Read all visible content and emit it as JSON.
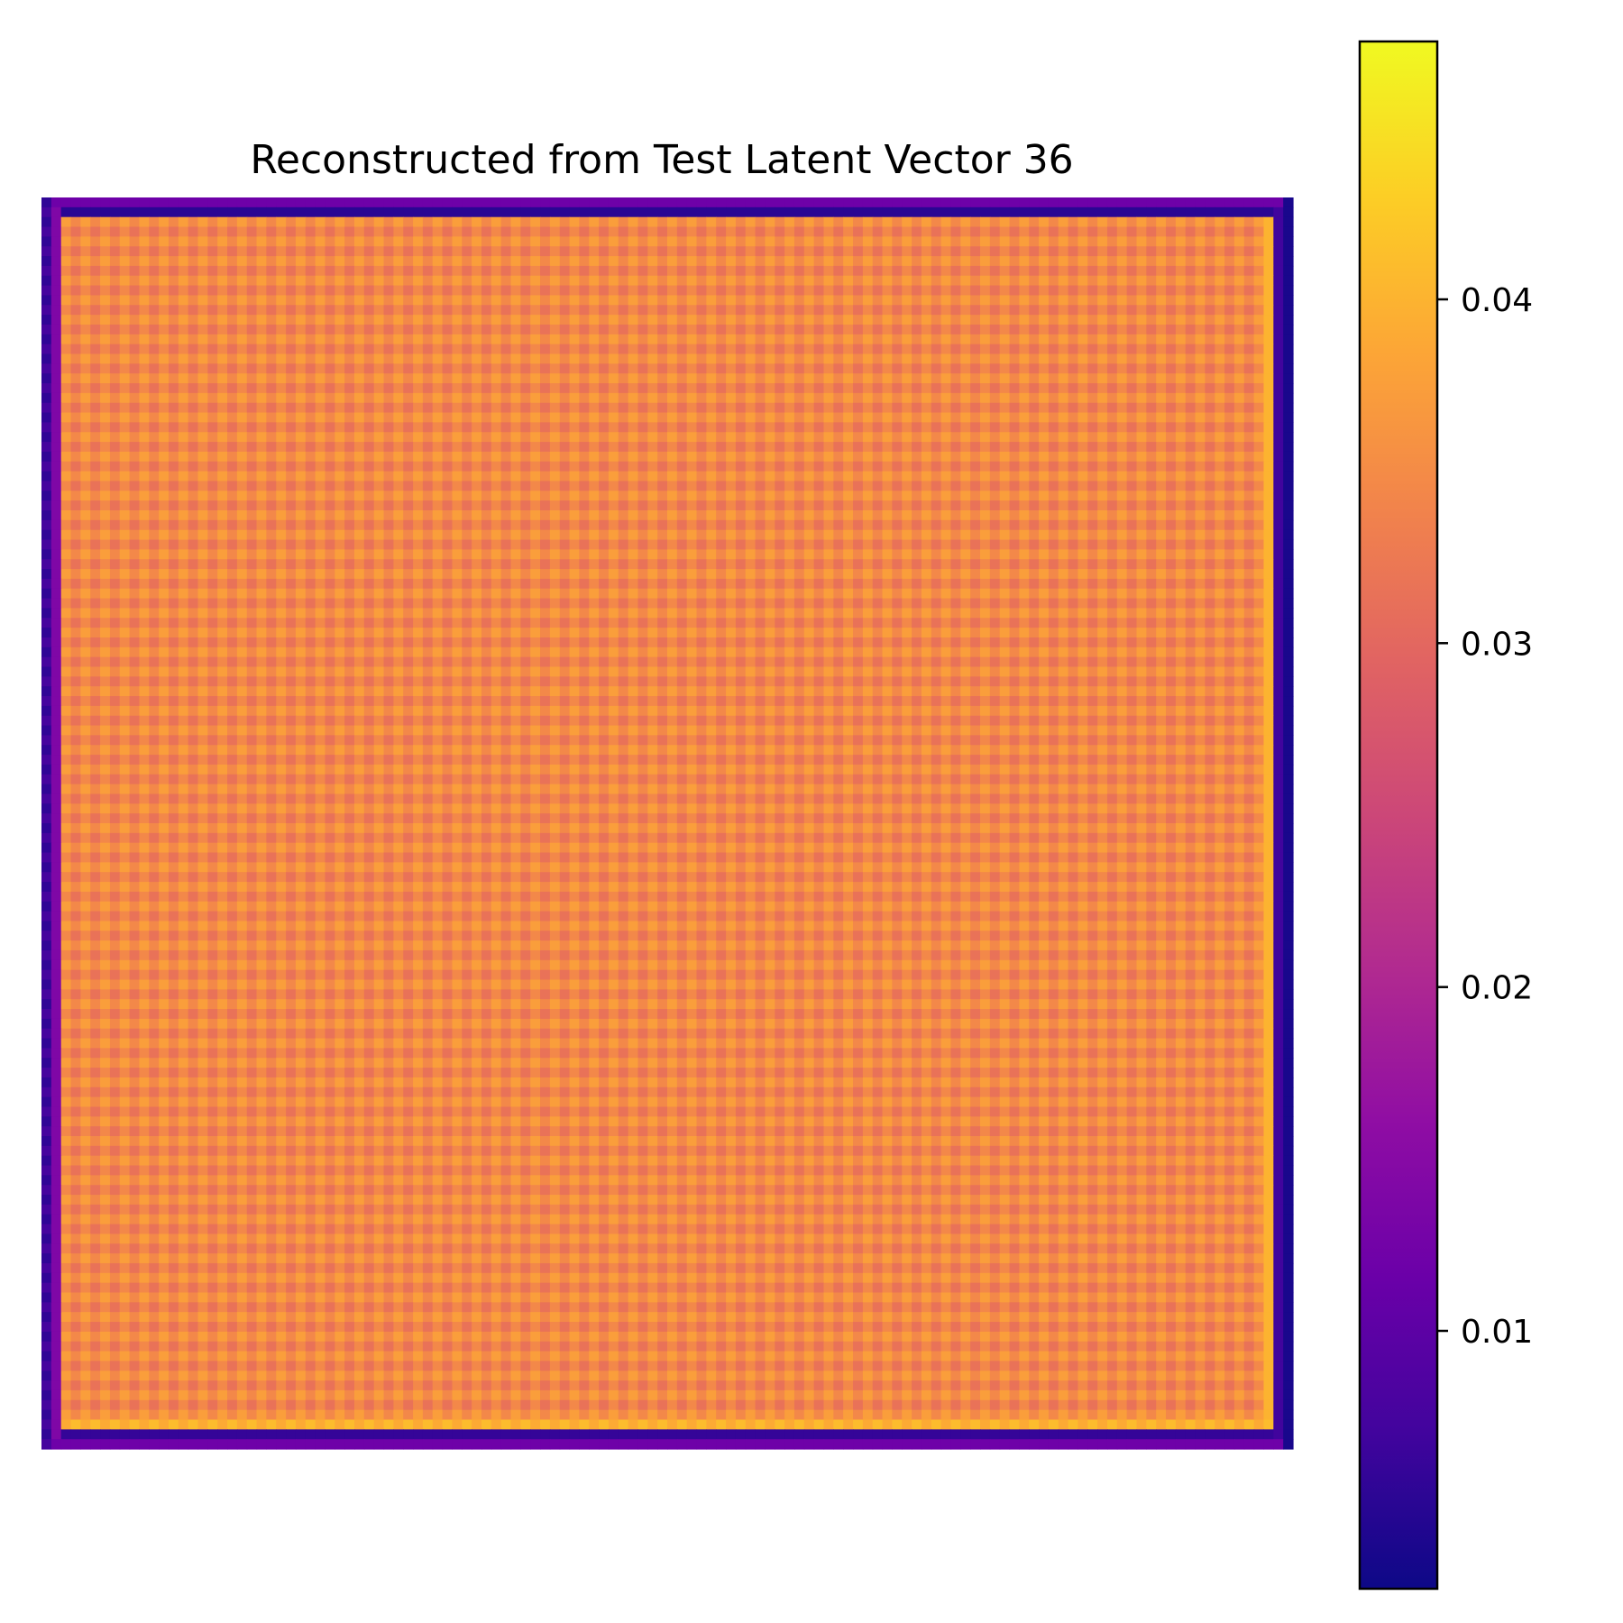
{
  "chart_data": {
    "type": "heatmap",
    "title": "Reconstructed from Test Latent Vector 36",
    "xlabel": "",
    "ylabel": "",
    "axes_visible": false,
    "colormap": "plasma",
    "grid_size": [
      128,
      128
    ],
    "value_range": [
      0.0025,
      0.0475
    ],
    "interior_values": {
      "base": 0.0345,
      "checker_high": 0.0375,
      "checker_low": 0.0315
    },
    "edge_values": {
      "left_outer_column": 0.0055,
      "left_inner_column": 0.014,
      "right_outer_column": 0.0035,
      "right_inner_column": 0.007,
      "top_outer_row": 0.012,
      "top_inner_row": 0.005,
      "bottom_outer_row": 0.012,
      "bottom_inner_row": 0.006,
      "bright_bottom_band": 0.041,
      "bright_right_band": 0.04
    },
    "colorbar": {
      "ticks": [
        0.01,
        0.02,
        0.03,
        0.04
      ],
      "tick_labels": [
        "0.01",
        "0.02",
        "0.03",
        "0.04"
      ],
      "min": 0.0025,
      "max": 0.0475,
      "placement": "right"
    }
  }
}
